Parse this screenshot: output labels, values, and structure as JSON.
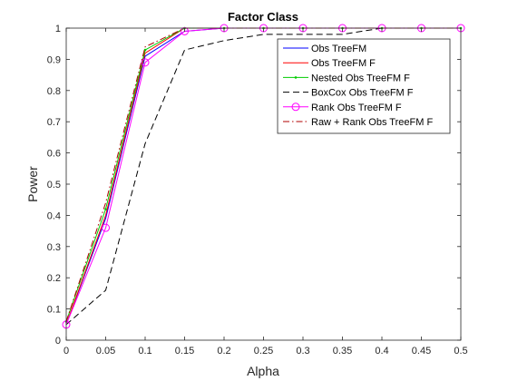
{
  "chart_data": {
    "type": "line",
    "title": "Factor Class",
    "xlabel": "Alpha",
    "ylabel": "Power",
    "xlim": [
      0,
      0.5
    ],
    "ylim": [
      0,
      1
    ],
    "xticks": [
      "0",
      "0.05",
      "0.1",
      "0.15",
      "0.2",
      "0.25",
      "0.3",
      "0.35",
      "0.4",
      "0.45",
      "0.5"
    ],
    "yticks": [
      "0",
      "0.1",
      "0.2",
      "0.3",
      "0.4",
      "0.5",
      "0.6",
      "0.7",
      "0.8",
      "0.9",
      "1"
    ],
    "grid": false,
    "legend_position": "top-right",
    "x": [
      0.0,
      0.05,
      0.1,
      0.15,
      0.2,
      0.25,
      0.3,
      0.35,
      0.4,
      0.45,
      0.5
    ],
    "series": [
      {
        "name": "Obs TreeFM",
        "color": "#0000ff",
        "dash": "solid",
        "marker": "none",
        "values": [
          0.05,
          0.39,
          0.91,
          0.99,
          1.0,
          1.0,
          1.0,
          1.0,
          1.0,
          1.0,
          1.0
        ]
      },
      {
        "name": "Obs TreeFM F",
        "color": "#ff0000",
        "dash": "solid",
        "marker": "none",
        "values": [
          0.05,
          0.4,
          0.92,
          1.0,
          1.0,
          1.0,
          1.0,
          1.0,
          1.0,
          1.0,
          1.0
        ]
      },
      {
        "name": "Nested Obs TreeFM F",
        "color": "#00cc00",
        "dash": "solid",
        "marker": "point",
        "values": [
          0.06,
          0.42,
          0.93,
          1.0,
          1.0,
          1.0,
          1.0,
          1.0,
          1.0,
          1.0,
          1.0
        ]
      },
      {
        "name": "BoxCox Obs TreeFM F",
        "color": "#000000",
        "dash": "dashed",
        "marker": "none",
        "values": [
          0.05,
          0.16,
          0.63,
          0.93,
          0.96,
          0.98,
          0.98,
          0.98,
          1.0,
          1.0,
          1.0
        ]
      },
      {
        "name": "Rank Obs TreeFM F",
        "color": "#ff00ff",
        "dash": "solid",
        "marker": "circle",
        "values": [
          0.05,
          0.36,
          0.89,
          0.99,
          1.0,
          1.0,
          1.0,
          1.0,
          1.0,
          1.0,
          1.0
        ]
      },
      {
        "name": "Raw + Rank Obs TreeFM F",
        "color": "#b00000",
        "dash": "dashdot",
        "marker": "none",
        "values": [
          0.06,
          0.44,
          0.94,
          1.0,
          1.0,
          1.0,
          1.0,
          1.0,
          1.0,
          1.0,
          1.0
        ]
      }
    ]
  }
}
